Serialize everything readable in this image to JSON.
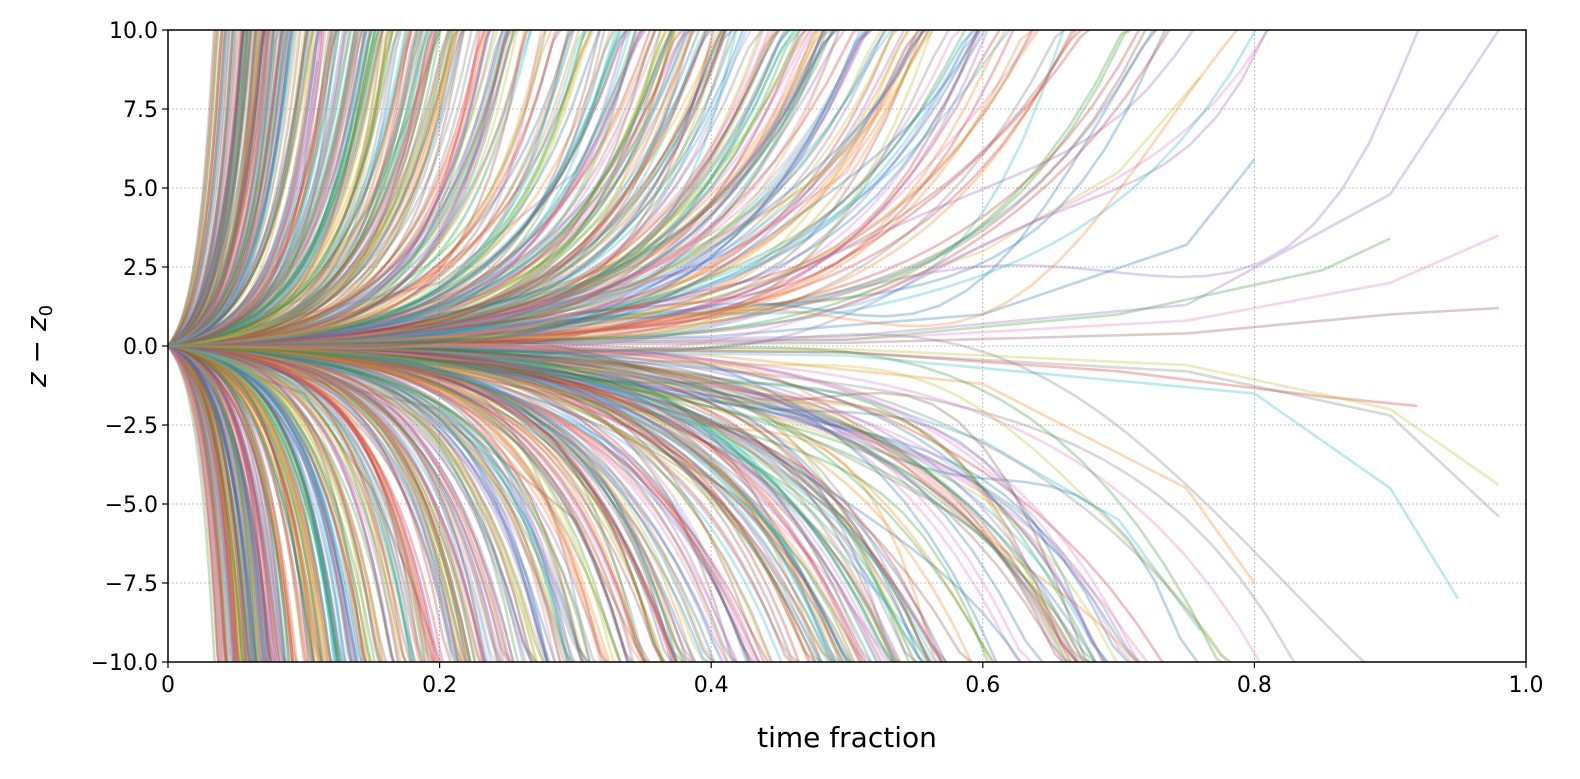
{
  "chart_data": {
    "type": "line",
    "title": "",
    "xlabel": "time fraction",
    "ylabel": "z − z0",
    "xlim": [
      0,
      1.0
    ],
    "ylim": [
      -10.0,
      10.0
    ],
    "x_ticks": [
      "0",
      "0.2",
      "0.4",
      "0.6",
      "0.8",
      "1.0"
    ],
    "y_ticks": [
      "10.0",
      "7.5",
      "5.0",
      "2.5",
      "0.0",
      "−2.5",
      "−5.0",
      "−7.5",
      "−10.0"
    ],
    "grid": true,
    "legend": "none",
    "series_origin": {
      "x": 0,
      "y": 0.0
    },
    "series_count_estimate": 1000,
    "series_alpha": 0.3,
    "colors": [
      "#1f77b4",
      "#ff7f0e",
      "#2ca02c",
      "#d62728",
      "#9467bd",
      "#8c564b",
      "#e377c2",
      "#7f7f7f",
      "#bcbd22",
      "#17becf"
    ],
    "series": [
      {
        "x": [
          0,
          0.05,
          0.08,
          0.1,
          0.11
        ],
        "y": [
          0,
          0.8,
          2.6,
          5.6,
          9.0
        ]
      },
      {
        "x": [
          0,
          0.05,
          0.08,
          0.1,
          0.11
        ],
        "y": [
          0,
          -0.6,
          -2.2,
          -4.8,
          -7.8
        ]
      },
      {
        "x": [
          0,
          0.1,
          0.15,
          0.18,
          0.2
        ],
        "y": [
          0,
          1.5,
          4.5,
          7.5,
          10.0
        ]
      },
      {
        "x": [
          0,
          0.1,
          0.15,
          0.18,
          0.2
        ],
        "y": [
          0,
          -1.5,
          -4.5,
          -7.5,
          -10.0
        ]
      },
      {
        "x": [
          0,
          0.2,
          0.3,
          0.35
        ],
        "y": [
          0,
          2.0,
          5.5,
          10.0
        ]
      },
      {
        "x": [
          0,
          0.2,
          0.3,
          0.35
        ],
        "y": [
          0,
          -2.0,
          -5.5,
          -10.0
        ]
      },
      {
        "x": [
          0,
          0.2,
          0.4,
          0.5,
          0.55
        ],
        "y": [
          0,
          0.8,
          2.5,
          5.5,
          9.8
        ]
      },
      {
        "x": [
          0,
          0.2,
          0.4,
          0.5,
          0.55
        ],
        "y": [
          0,
          -0.8,
          -2.5,
          -5.5,
          -10.0
        ]
      },
      {
        "x": [
          0,
          0.3,
          0.5,
          0.6,
          0.7,
          0.76
        ],
        "y": [
          0,
          0.5,
          1.5,
          3.0,
          5.5,
          8.5
        ]
      },
      {
        "x": [
          0,
          0.3,
          0.5,
          0.6,
          0.7,
          0.76
        ],
        "y": [
          0,
          -0.5,
          -1.5,
          -3.0,
          -5.5,
          -9.0
        ]
      },
      {
        "x": [
          0,
          0.4,
          0.6,
          0.75,
          0.8
        ],
        "y": [
          0,
          0.3,
          1.0,
          3.2,
          5.9
        ]
      },
      {
        "x": [
          0,
          0.4,
          0.6,
          0.75,
          0.8
        ],
        "y": [
          0,
          -0.3,
          -1.2,
          -4.5,
          -7.5
        ]
      },
      {
        "x": [
          0,
          0.5,
          0.7,
          0.85,
          0.9
        ],
        "y": [
          0,
          0.2,
          1.0,
          2.4,
          3.4
        ]
      },
      {
        "x": [
          0,
          0.5,
          0.7,
          0.85,
          0.92
        ],
        "y": [
          0,
          -0.2,
          -0.8,
          -1.6,
          -1.9
        ]
      },
      {
        "x": [
          0,
          0.5,
          0.75,
          0.9,
          0.98
        ],
        "y": [
          0,
          0.3,
          1.3,
          4.8,
          10.0
        ]
      },
      {
        "x": [
          0,
          0.5,
          0.75,
          0.9,
          0.98
        ],
        "y": [
          0,
          0.1,
          0.4,
          1.0,
          1.2
        ]
      },
      {
        "x": [
          0,
          0.5,
          0.75,
          0.9,
          0.98
        ],
        "y": [
          0,
          0.2,
          0.8,
          2.0,
          3.5
        ]
      },
      {
        "x": [
          0,
          0.5,
          0.75,
          0.9,
          0.98
        ],
        "y": [
          0,
          -0.2,
          -0.8,
          -2.2,
          -5.4
        ]
      },
      {
        "x": [
          0,
          0.5,
          0.75,
          0.9,
          0.98
        ],
        "y": [
          0,
          -0.1,
          -0.6,
          -2.0,
          -4.4
        ]
      },
      {
        "x": [
          0,
          0.5,
          0.8,
          0.9,
          0.95
        ],
        "y": [
          0,
          -0.3,
          -1.5,
          -4.5,
          -8.0
        ]
      }
    ]
  }
}
